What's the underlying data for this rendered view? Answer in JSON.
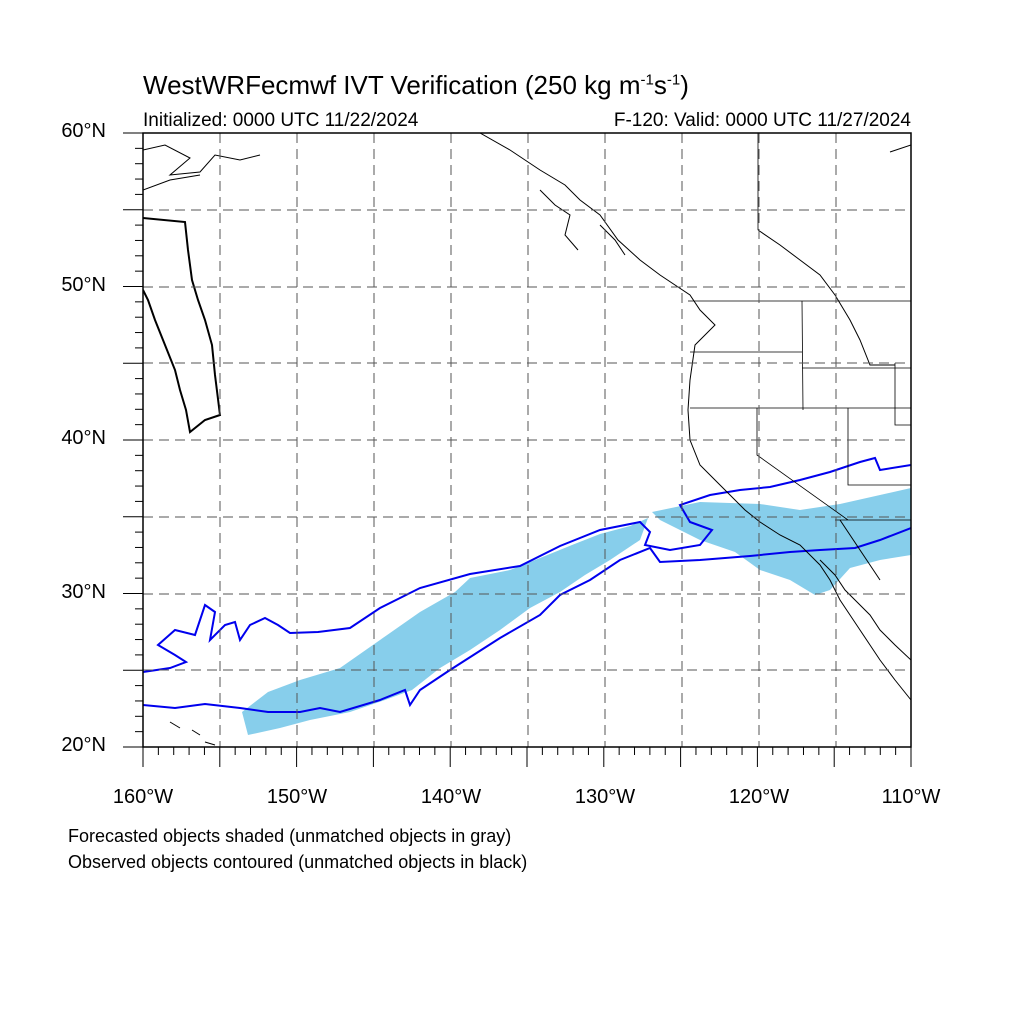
{
  "title_main": "WestWRFecmwf IVT Verification (250 kg m",
  "title_exp1": "-1",
  "title_mid": "s",
  "title_exp2": "-1",
  "title_end": ")",
  "initialized": "Initialized: 0000 UTC 11/22/2024",
  "valid": "F-120: Valid: 0000 UTC 11/27/2024",
  "lat_labels": [
    "60°N",
    "50°N",
    "40°N",
    "30°N",
    "20°N"
  ],
  "lon_labels": [
    "160°W",
    "150°W",
    "140°W",
    "130°W",
    "120°W",
    "110°W"
  ],
  "footer_line1": "Forecasted objects shaded (unmatched objects in gray)",
  "footer_line2": "Observed objects contoured (unmatched objects in black)",
  "colors": {
    "forecast_fill": "#87ceeb",
    "observed_contour": "#0000ee",
    "coastline": "#000000",
    "grid": "#555555"
  }
}
